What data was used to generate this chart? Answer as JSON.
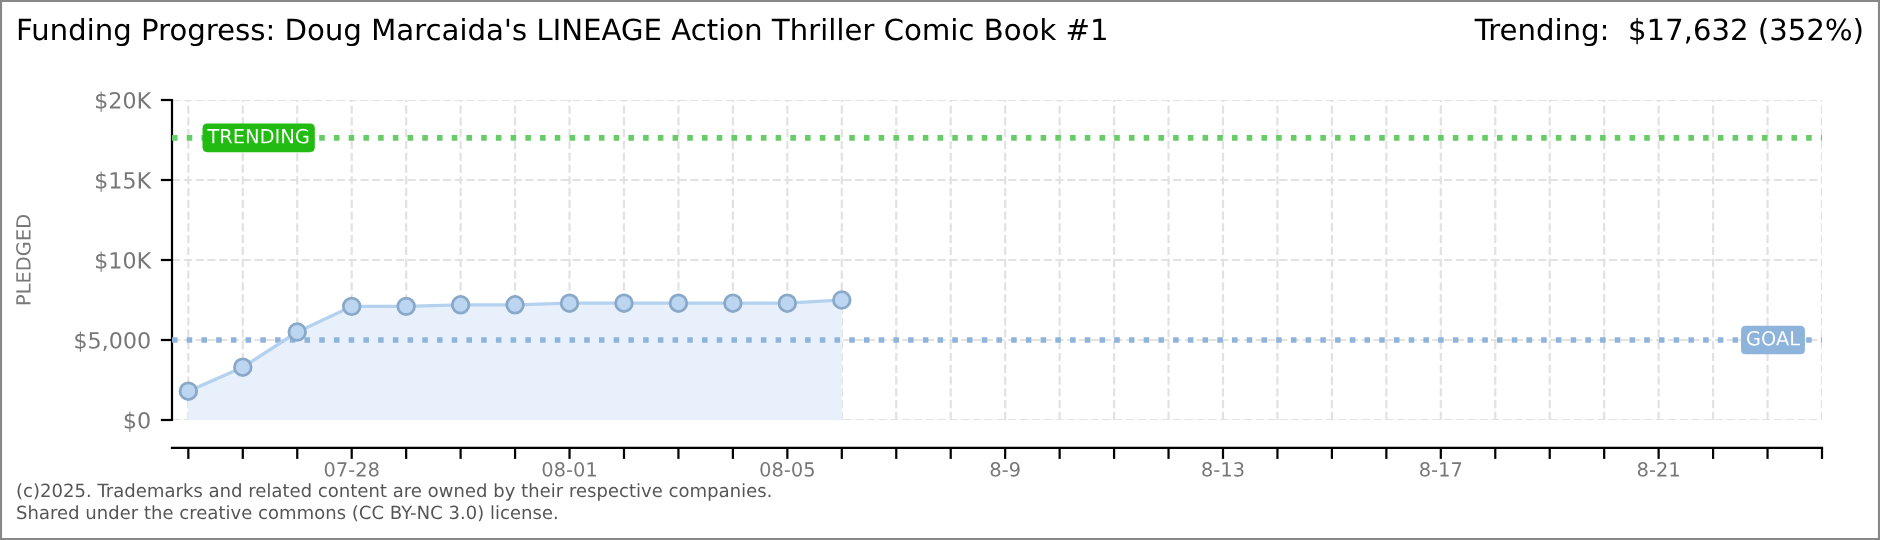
{
  "chart_data": {
    "type": "area",
    "title": "Funding Progress: Doug Marcaida's LINEAGE Action Thriller Comic Book #1",
    "ylabel": "PLEDGED",
    "categories": [
      null,
      null,
      null,
      "07-28",
      null,
      null,
      null,
      "08-01",
      null,
      null,
      null,
      "08-05",
      null,
      null,
      null,
      "8-9",
      null,
      null,
      null,
      "8-13",
      null,
      null,
      null,
      "8-17",
      null,
      null,
      null,
      "8-21",
      null,
      null,
      null
    ],
    "series": [
      {
        "color": "#e8f1fb",
        "values": [
          1800,
          3300,
          5500,
          7100,
          7100,
          7200,
          7200,
          7300,
          7300,
          7300,
          7300,
          7300,
          7500,
          null,
          null,
          null,
          null,
          null,
          null,
          null,
          null,
          null,
          null,
          null,
          null,
          null,
          null,
          null,
          null,
          null,
          null
        ]
      }
    ],
    "marker": "circle",
    "ylim": [
      0,
      20000
    ],
    "yticks": [
      {
        "value": 0,
        "label": "$0"
      },
      {
        "value": 5000,
        "label": "$5,000"
      },
      {
        "value": 10000,
        "label": "$10K"
      },
      {
        "value": 15000,
        "label": "$15K"
      },
      {
        "value": 20000,
        "label": "$20K"
      }
    ],
    "grid": true,
    "ref_lines": [
      {
        "axis": "y",
        "value": 17632,
        "label": "TRENDING",
        "color": "#66cc66",
        "line_style": "dotted"
      },
      {
        "axis": "y",
        "value": 5000,
        "label": "GOAL",
        "color": "#8fb4dc",
        "line_style": "dotted"
      }
    ],
    "annotations": [
      "Trending:  $17,632 (352%)",
      "(c)2025. Trademarks and related content are owned by their respective companies.",
      "Shared under the creative commons (CC BY-NC 3.0) license."
    ]
  }
}
